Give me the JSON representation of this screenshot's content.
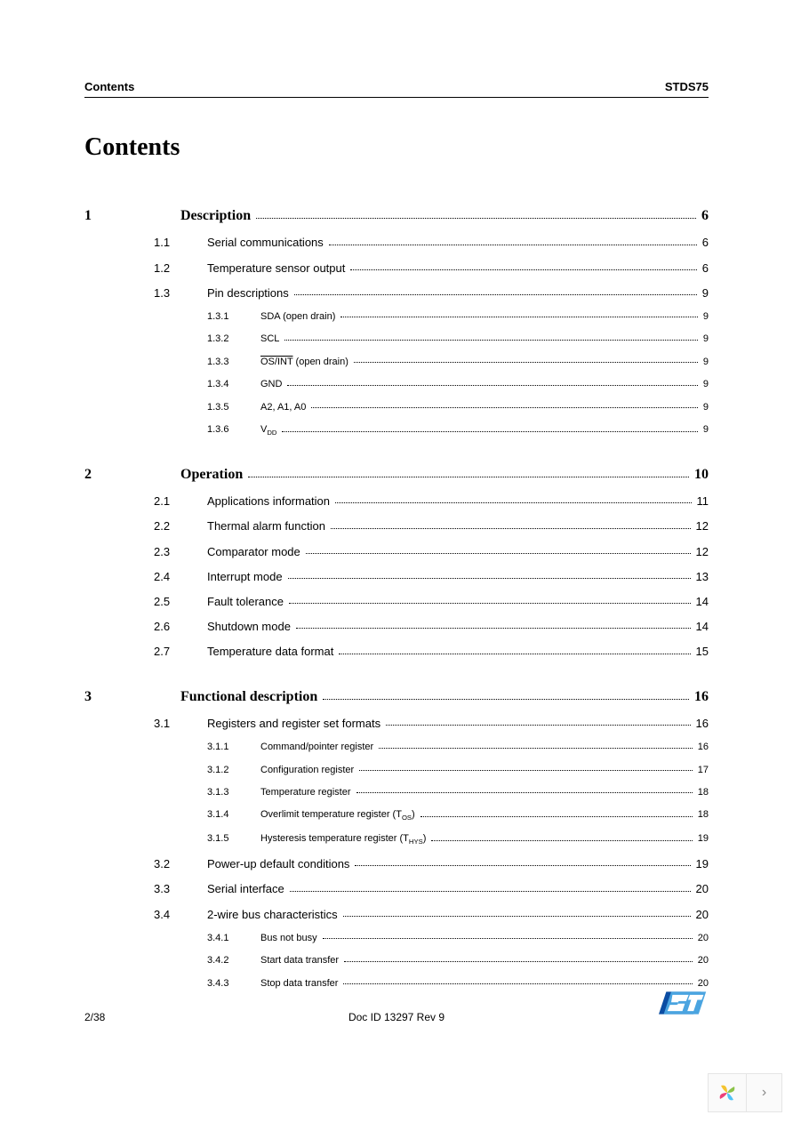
{
  "header": {
    "left": "Contents",
    "right": "STDS75"
  },
  "title": "Contents",
  "sections": [
    {
      "num": "1",
      "label": "Description",
      "page": "6",
      "subs": [
        {
          "num": "1.1",
          "label": "Serial communications",
          "page": "6"
        },
        {
          "num": "1.2",
          "label": "Temperature sensor output",
          "page": "6"
        },
        {
          "num": "1.3",
          "label": "Pin descriptions",
          "page": "9",
          "subs": [
            {
              "num": "1.3.1",
              "label": "SDA (open drain)",
              "page": "9"
            },
            {
              "num": "1.3.2",
              "label": "SCL",
              "page": "9"
            },
            {
              "num": "1.3.3",
              "label_html": "<span class=\"overline\">OS/INT</span> (open drain)",
              "page": "9"
            },
            {
              "num": "1.3.4",
              "label": "GND",
              "page": "9"
            },
            {
              "num": "1.3.5",
              "label": "A2, A1, A0",
              "page": "9"
            },
            {
              "num": "1.3.6",
              "label_html": "V<span class=\"sub\">DD</span>",
              "page": "9"
            }
          ]
        }
      ]
    },
    {
      "num": "2",
      "label": "Operation",
      "page": "10",
      "subs": [
        {
          "num": "2.1",
          "label": "Applications information",
          "page": "11"
        },
        {
          "num": "2.2",
          "label": "Thermal alarm function",
          "page": "12"
        },
        {
          "num": "2.3",
          "label": "Comparator mode",
          "page": "12"
        },
        {
          "num": "2.4",
          "label": "Interrupt mode",
          "page": "13"
        },
        {
          "num": "2.5",
          "label": "Fault tolerance",
          "page": "14"
        },
        {
          "num": "2.6",
          "label": "Shutdown mode",
          "page": "14"
        },
        {
          "num": "2.7",
          "label": "Temperature data format",
          "page": "15"
        }
      ]
    },
    {
      "num": "3",
      "label": "Functional description",
      "page": "16",
      "subs": [
        {
          "num": "3.1",
          "label": "Registers and register set formats",
          "page": "16",
          "subs": [
            {
              "num": "3.1.1",
              "label": "Command/pointer register",
              "page": "16"
            },
            {
              "num": "3.1.2",
              "label": "Configuration register",
              "page": "17"
            },
            {
              "num": "3.1.3",
              "label": "Temperature register",
              "page": "18"
            },
            {
              "num": "3.1.4",
              "label_html": "Overlimit temperature register (T<span class=\"sub\">OS</span>)",
              "page": "18"
            },
            {
              "num": "3.1.5",
              "label_html": "Hysteresis temperature register (T<span class=\"sub\">HYS</span>)",
              "page": "19"
            }
          ]
        },
        {
          "num": "3.2",
          "label": "Power-up default conditions",
          "page": "19"
        },
        {
          "num": "3.3",
          "label": "Serial interface",
          "page": "20"
        },
        {
          "num": "3.4",
          "label": "2-wire bus characteristics",
          "page": "20",
          "subs": [
            {
              "num": "3.4.1",
              "label": "Bus not busy",
              "page": "20"
            },
            {
              "num": "3.4.2",
              "label": "Start data transfer",
              "page": "20"
            },
            {
              "num": "3.4.3",
              "label": "Stop data transfer",
              "page": "20"
            }
          ]
        }
      ]
    }
  ],
  "footer": {
    "page_num": "2/38",
    "doc_id": "Doc ID 13297 Rev 9"
  },
  "logo_colors": {
    "blue_dark": "#0b4da3",
    "blue_light": "#4aa4e0",
    "white": "#ffffff"
  },
  "nav_colors": {
    "border": "#e5e5e5",
    "bg": "#fafafa",
    "chev": "#888888"
  },
  "pinwheel_colors": [
    "#f4c430",
    "#8bc34a",
    "#4fc3f7",
    "#ec407a"
  ]
}
